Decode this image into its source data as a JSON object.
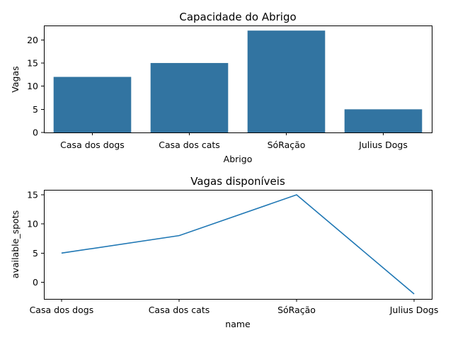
{
  "chart_data": [
    {
      "type": "bar",
      "title": "Capacidade do Abrigo",
      "xlabel": "Abrigo",
      "ylabel": "Vagas",
      "categories": [
        "Casa dos dogs",
        "Casa dos cats",
        "SóRação",
        "Julius Dogs"
      ],
      "values": [
        12,
        15,
        22,
        5
      ],
      "ylim": [
        0,
        23.1
      ],
      "yticks": [
        0,
        5,
        10,
        15,
        20
      ],
      "color": "#3274a1",
      "grid": false
    },
    {
      "type": "line",
      "title": "Vagas disponíveis",
      "xlabel": "name",
      "ylabel": "available_spots",
      "categories": [
        "Casa dos dogs",
        "Casa dos cats",
        "SóRação",
        "Julius Dogs"
      ],
      "values": [
        5,
        8,
        15,
        -2
      ],
      "ylim": [
        -2.85,
        15.85
      ],
      "yticks": [
        0,
        5,
        10,
        15
      ],
      "color": "#1f77b4",
      "grid": false
    }
  ]
}
